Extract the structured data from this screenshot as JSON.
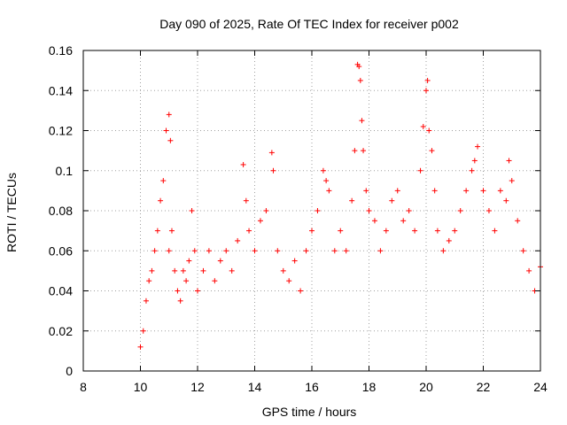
{
  "chart_data": {
    "type": "scatter",
    "title": "Day 090 of 2025, Rate Of TEC Index for receiver p002",
    "xlabel": "GPS time / hours",
    "ylabel": "ROTI / TECUs",
    "xlim": [
      8,
      24
    ],
    "ylim": [
      0,
      0.16
    ],
    "x_ticks": [
      "8",
      "10",
      "12",
      "14",
      "16",
      "18",
      "20",
      "22",
      "24"
    ],
    "y_ticks": [
      "0",
      "0.02",
      "0.04",
      "0.06",
      "0.08",
      "0.1",
      "0.12",
      "0.14",
      "0.16"
    ],
    "grid": true,
    "marker": "+",
    "color": "#ff0000",
    "series": [
      {
        "name": "ROTI",
        "x": [
          10.0,
          10.1,
          10.2,
          10.3,
          10.4,
          10.5,
          10.6,
          10.7,
          10.8,
          10.9,
          11.0,
          11.0,
          11.05,
          11.1,
          11.2,
          11.3,
          11.4,
          11.5,
          11.6,
          11.7,
          11.8,
          11.9,
          12.0,
          12.2,
          12.4,
          12.6,
          12.8,
          13.0,
          13.2,
          13.4,
          13.6,
          13.7,
          13.8,
          14.0,
          14.2,
          14.4,
          14.6,
          14.65,
          14.8,
          15.0,
          15.2,
          15.4,
          15.6,
          15.8,
          16.0,
          16.2,
          16.4,
          16.5,
          16.6,
          16.8,
          17.0,
          17.2,
          17.4,
          17.5,
          17.6,
          17.65,
          17.7,
          17.75,
          17.8,
          17.9,
          18.0,
          18.2,
          18.4,
          18.6,
          18.8,
          19.0,
          19.2,
          19.4,
          19.6,
          19.8,
          19.9,
          20.0,
          20.05,
          20.1,
          20.2,
          20.3,
          20.4,
          20.6,
          20.8,
          21.0,
          21.2,
          21.4,
          21.6,
          21.7,
          21.8,
          22.0,
          22.2,
          22.4,
          22.6,
          22.8,
          22.9,
          23.0,
          23.2,
          23.4,
          23.6,
          23.8,
          24.0
        ],
        "y": [
          0.012,
          0.02,
          0.035,
          0.045,
          0.05,
          0.06,
          0.07,
          0.085,
          0.095,
          0.12,
          0.128,
          0.06,
          0.115,
          0.07,
          0.05,
          0.04,
          0.035,
          0.05,
          0.045,
          0.055,
          0.08,
          0.06,
          0.04,
          0.05,
          0.06,
          0.045,
          0.055,
          0.06,
          0.05,
          0.065,
          0.103,
          0.085,
          0.07,
          0.06,
          0.075,
          0.08,
          0.109,
          0.1,
          0.06,
          0.05,
          0.045,
          0.055,
          0.04,
          0.06,
          0.07,
          0.08,
          0.1,
          0.095,
          0.09,
          0.06,
          0.07,
          0.06,
          0.085,
          0.11,
          0.153,
          0.152,
          0.145,
          0.125,
          0.11,
          0.09,
          0.08,
          0.075,
          0.06,
          0.07,
          0.085,
          0.09,
          0.075,
          0.08,
          0.07,
          0.1,
          0.122,
          0.14,
          0.145,
          0.12,
          0.11,
          0.09,
          0.07,
          0.06,
          0.065,
          0.07,
          0.08,
          0.09,
          0.1,
          0.105,
          0.112,
          0.09,
          0.08,
          0.07,
          0.09,
          0.085,
          0.105,
          0.095,
          0.075,
          0.06,
          0.05,
          0.04,
          0.052
        ]
      }
    ]
  }
}
